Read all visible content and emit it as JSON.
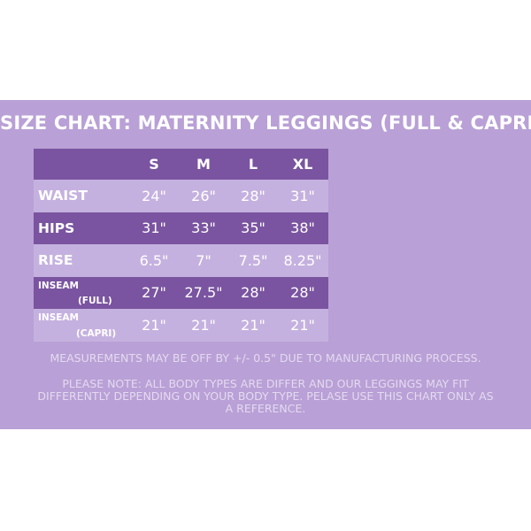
{
  "title": "SIZE CHART: MATERNITY LEGGINGS (FULL & CAPRI)",
  "table": {
    "columns": [
      "S",
      "M",
      "L",
      "XL"
    ],
    "rows": [
      {
        "label": "WAIST",
        "values": [
          "24\"",
          "26\"",
          "28\"",
          "31\""
        ]
      },
      {
        "label": "HIPS",
        "values": [
          "31\"",
          "33\"",
          "35\"",
          "38\""
        ]
      },
      {
        "label": "RISE",
        "values": [
          "6.5\"",
          "7\"",
          "7.5\"",
          "8.25\""
        ]
      },
      {
        "label_top": "INSEAM",
        "label_bottom": "(FULL)",
        "values": [
          "27\"",
          "27.5\"",
          "28\"",
          "28\""
        ]
      },
      {
        "label_top": "INSEAM",
        "label_bottom": "(CAPRI)",
        "values": [
          "21\"",
          "21\"",
          "21\"",
          "21\""
        ]
      }
    ]
  },
  "notes": {
    "measurement": "MEASUREMENTS MAY BE OFF BY +/- 0.5\" DUE TO MANUFACTURING PROCESS.",
    "disclaimer": "PLEASE NOTE: ALL BODY TYPES ARE DIFFER AND OUR LEGGINGS MAY FIT DIFFERENTLY DEPENDING ON YOUR BODY TYPE. PELASE USE THIS CHART ONLY AS A REFERENCE."
  },
  "colors": {
    "panel": "#b9a0d6",
    "row_dark": "#7a54a0",
    "row_light": "#c5b1df",
    "text": "#ffffff"
  }
}
